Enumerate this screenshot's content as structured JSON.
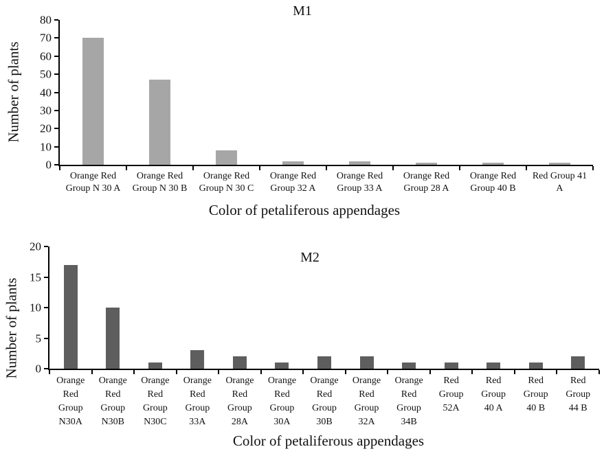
{
  "figure": {
    "background": "#ffffff",
    "text_color": "#111111",
    "axis_color": "#000000"
  },
  "chart_data": [
    {
      "type": "bar",
      "title": "M1",
      "xlabel": "Color of petaliferous appendages",
      "ylabel": "Number of plants",
      "ylim": [
        0,
        80
      ],
      "ytick_step": 10,
      "grid": false,
      "legend": "none",
      "bar_color": "#a6a6a6",
      "categories": [
        "Orange Red Group N 30 A",
        "Orange Red Group N 30 B",
        "Orange Red Group N 30 C",
        "Orange Red Group 32 A",
        "Orange Red Group 33 A",
        "Orange Red Group 28 A",
        "Orange Red Group 40 B",
        "Red Group 41 A"
      ],
      "category_lines": [
        [
          "Orange Red",
          "Group N 30 A"
        ],
        [
          "Orange Red",
          "Group N 30 B"
        ],
        [
          "Orange Red",
          "Group N 30 C"
        ],
        [
          "Orange Red",
          "Group 32 A"
        ],
        [
          "Orange Red",
          "Group 33 A"
        ],
        [
          "Orange Red",
          "Group 28 A"
        ],
        [
          "Orange Red",
          "Group 40 B"
        ],
        [
          "Red Group 41",
          "A"
        ]
      ],
      "values": [
        70,
        47,
        8,
        2,
        2,
        1,
        1,
        1
      ]
    },
    {
      "type": "bar",
      "title": "M2",
      "xlabel": "Color of petaliferous appendages",
      "ylabel": "Number of plants",
      "ylim": [
        0,
        20
      ],
      "ytick_step": 5,
      "grid": false,
      "legend": "none",
      "bar_color": "#5e5e5e",
      "categories": [
        "Orange Red Group N30A",
        "Orange Red Group N30B",
        "Orange Red Group N30C",
        "Orange Red Group 33A",
        "Orange Red Group 28A",
        "Orange Red Group 30A",
        "Orange Red Group 30B",
        "Orange Red Group 32A",
        "Orange Red Group 34B",
        "Red Group 52A",
        "Red Group 40 A",
        "Red Group 40 B",
        "Red Group 44 B"
      ],
      "category_lines": [
        [
          "Orange",
          "Red",
          "Group",
          "N30A"
        ],
        [
          "Orange",
          "Red",
          "Group",
          "N30B"
        ],
        [
          "Orange",
          "Red",
          "Group",
          "N30C"
        ],
        [
          "Orange",
          "Red",
          "Group",
          "33A"
        ],
        [
          "Orange",
          "Red",
          "Group",
          "28A"
        ],
        [
          "Orange",
          "Red",
          "Group",
          "30A"
        ],
        [
          "Orange",
          "Red",
          "Group",
          "30B"
        ],
        [
          "Orange",
          "Red",
          "Group",
          "32A"
        ],
        [
          "Orange",
          "Red",
          "Group",
          "34B"
        ],
        [
          "Red",
          "Group",
          "52A"
        ],
        [
          "Red",
          "Group",
          "40 A"
        ],
        [
          "Red",
          "Group",
          "40 B"
        ],
        [
          "Red",
          "Group",
          "44 B"
        ]
      ],
      "values": [
        17,
        10,
        1,
        3,
        2,
        1,
        2,
        2,
        1,
        1,
        1,
        1,
        2
      ]
    }
  ]
}
